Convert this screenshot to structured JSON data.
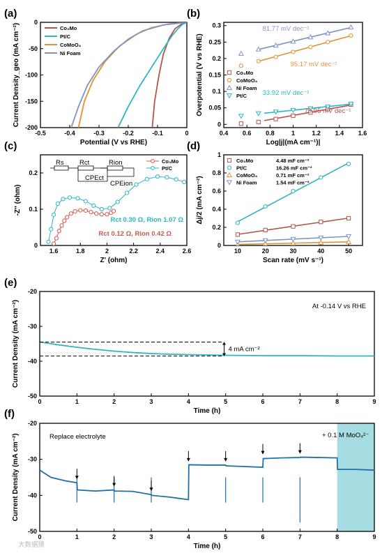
{
  "watermark": "大数据猿",
  "chart_data": [
    {
      "panel": "(a)",
      "type": "line",
      "xlabel": "Potential (V vs RHE)",
      "ylabel": "Current Density_geo (mA cm⁻²)",
      "xlim": [
        -0.5,
        0.0
      ],
      "ylim": [
        -200,
        0
      ],
      "xticks": [
        -0.5,
        -0.4,
        -0.3,
        -0.2,
        -0.1,
        0.0
      ],
      "yticks": [
        0,
        -50,
        -100,
        -150,
        -200
      ],
      "legend_position": "top-left",
      "series": [
        {
          "name": "Co₃Mo",
          "color": "#b5534a",
          "x": [
            -0.118,
            -0.11,
            -0.095,
            -0.08,
            -0.06,
            -0.04,
            -0.02,
            -0.01,
            0.0
          ],
          "y": [
            -200,
            -150,
            -100,
            -60,
            -30,
            -12,
            -4,
            -1,
            0
          ]
        },
        {
          "name": "Pt/C",
          "color": "#2bb6c4",
          "x": [
            -0.235,
            -0.2,
            -0.16,
            -0.12,
            -0.08,
            -0.05,
            -0.03,
            -0.015,
            0.0
          ],
          "y": [
            -200,
            -160,
            -120,
            -85,
            -50,
            -25,
            -12,
            -4,
            0
          ]
        },
        {
          "name": "CoMoO₄",
          "color": "#e3912f",
          "x": [
            -0.37,
            -0.35,
            -0.32,
            -0.28,
            -0.23,
            -0.17,
            -0.12,
            -0.06,
            0.0
          ],
          "y": [
            -200,
            -150,
            -110,
            -75,
            -45,
            -22,
            -10,
            -3,
            0
          ]
        },
        {
          "name": "Ni Foam",
          "color": "#7f93c9",
          "x": [
            -0.395,
            -0.37,
            -0.34,
            -0.3,
            -0.25,
            -0.2,
            -0.15,
            -0.08,
            0.0
          ],
          "y": [
            -200,
            -160,
            -120,
            -85,
            -55,
            -32,
            -16,
            -5,
            0
          ]
        }
      ]
    },
    {
      "panel": "(b)",
      "type": "scatter",
      "xlabel": "Log|j|(mA cm⁻¹)|",
      "ylabel": "Overpotential (V vs RHE)",
      "xlim": [
        0.4,
        1.6
      ],
      "ylim": [
        -0.01,
        0.31
      ],
      "xticks": [
        0.4,
        0.6,
        0.8,
        1.0,
        1.2,
        1.4,
        1.6
      ],
      "yticks": [
        0.0,
        0.05,
        0.1,
        0.15,
        0.2,
        0.25,
        0.3
      ],
      "legend_position": "center-left",
      "series": [
        {
          "name": "Co₃Mo",
          "marker": "square",
          "color": "#b5534a",
          "x": [
            0.55,
            0.7,
            0.85,
            1.0,
            1.15,
            1.3,
            1.5
          ],
          "y": [
            0.002,
            0.007,
            0.016,
            0.026,
            0.036,
            0.046,
            0.06
          ],
          "tafel": "70.95 mV dec⁻¹"
        },
        {
          "name": "CoMoO₄",
          "marker": "circle",
          "color": "#e3912f",
          "x": [
            0.55,
            0.7,
            0.85,
            1.0,
            1.15,
            1.3,
            1.5
          ],
          "y": [
            0.178,
            0.192,
            0.205,
            0.22,
            0.235,
            0.25,
            0.27
          ],
          "tafel": "95.17 mV dec⁻¹"
        },
        {
          "name": "Ni Foam",
          "marker": "triangle-up",
          "color": "#7f93c9",
          "x": [
            0.55,
            0.7,
            0.85,
            1.0,
            1.15,
            1.3,
            1.5
          ],
          "y": [
            0.215,
            0.228,
            0.24,
            0.252,
            0.265,
            0.277,
            0.295
          ],
          "tafel": "81.77 mV dec⁻¹"
        },
        {
          "name": "Pt/C",
          "marker": "triangle-down",
          "color": "#2bb6c4",
          "x": [
            0.55,
            0.7,
            0.85,
            1.0,
            1.15,
            1.3,
            1.5
          ],
          "y": [
            0.025,
            0.033,
            0.038,
            0.043,
            0.048,
            0.053,
            0.062
          ],
          "tafel": "33.92 mV dec⁻¹"
        }
      ]
    },
    {
      "panel": "(c)",
      "type": "scatter",
      "xlabel": "Z' (ohm)",
      "ylabel": "-Z'' (ohm)",
      "xlim": [
        1.5,
        2.6
      ],
      "ylim": [
        0.0,
        0.25
      ],
      "xticks": [
        1.6,
        1.8,
        2.0,
        2.2,
        2.4,
        2.6
      ],
      "yticks": [
        0.0,
        0.1,
        0.2
      ],
      "legend_position": "top-right",
      "circuit": {
        "labels": [
          "Rs",
          "Rct",
          "Rion",
          "CPEct",
          "CPEion"
        ]
      },
      "annotations": [
        "Rct 0.30 Ω, Rion 1.07 Ω",
        "Rct 0.12 Ω, Rion 0.42 Ω"
      ],
      "series": [
        {
          "name": "Co₃Mo",
          "marker": "circle",
          "color": "#d1584b",
          "x": [
            1.6,
            1.62,
            1.64,
            1.66,
            1.68,
            1.7,
            1.73,
            1.76,
            1.8,
            1.84,
            1.88,
            1.92,
            1.96,
            2.0,
            2.03,
            2.05
          ],
          "y": [
            0.005,
            0.02,
            0.04,
            0.055,
            0.068,
            0.078,
            0.088,
            0.094,
            0.097,
            0.096,
            0.092,
            0.088,
            0.086,
            0.086,
            0.09,
            0.095
          ]
        },
        {
          "name": "Pt/C",
          "marker": "circle",
          "color": "#2bb6c4",
          "x": [
            1.56,
            1.58,
            1.6,
            1.63,
            1.67,
            1.72,
            1.78,
            1.84,
            1.9,
            1.96,
            2.02,
            2.08,
            2.15,
            2.22,
            2.3,
            2.38,
            2.45,
            2.52,
            2.58
          ],
          "y": [
            0.01,
            0.045,
            0.085,
            0.115,
            0.128,
            0.132,
            0.13,
            0.122,
            0.11,
            0.1,
            0.103,
            0.12,
            0.145,
            0.168,
            0.183,
            0.19,
            0.188,
            0.182,
            0.175
          ]
        }
      ]
    },
    {
      "panel": "(d)",
      "type": "scatter",
      "xlabel": "Scan rate (mV s⁻¹)",
      "ylabel": "Δj/2 (mA cm⁻²)",
      "xlim": [
        5,
        55
      ],
      "ylim": [
        0.0,
        1.0
      ],
      "xticks": [
        10,
        20,
        30,
        40,
        50
      ],
      "yticks": [
        0.0,
        0.2,
        0.4,
        0.6,
        0.8,
        1.0
      ],
      "legend_position": "top-left",
      "series": [
        {
          "name": "Co₃Mo",
          "marker": "square",
          "color": "#b5534a",
          "capacitance": "4.48 mF cm⁻²",
          "x": [
            10,
            20,
            30,
            40,
            50
          ],
          "y": [
            0.12,
            0.17,
            0.21,
            0.26,
            0.3
          ]
        },
        {
          "name": "Pt/C",
          "marker": "circle",
          "color": "#2bb6c4",
          "capacitance": "16.26 mF cm⁻²",
          "x": [
            10,
            20,
            30,
            40,
            50
          ],
          "y": [
            0.25,
            0.43,
            0.6,
            0.75,
            0.9
          ]
        },
        {
          "name": "CoMoO₄",
          "marker": "triangle-up",
          "color": "#e3912f",
          "capacitance": "0.71 mF cm⁻²",
          "x": [
            10,
            20,
            30,
            40,
            50
          ],
          "y": [
            0.01,
            0.02,
            0.025,
            0.032,
            0.04
          ]
        },
        {
          "name": "Ni Foam",
          "marker": "triangle-down",
          "color": "#7f93c9",
          "capacitance": "1.54 mF cm⁻²",
          "x": [
            10,
            20,
            30,
            40,
            50
          ],
          "y": [
            0.04,
            0.055,
            0.07,
            0.085,
            0.1
          ]
        }
      ]
    },
    {
      "panel": "(e)",
      "type": "line",
      "xlabel": "Time (h)",
      "ylabel": "Current Density (mA cm⁻²)",
      "xlim": [
        0,
        9
      ],
      "ylim": [
        -50,
        -20
      ],
      "xticks": [
        0,
        1,
        2,
        3,
        4,
        5,
        6,
        7,
        8,
        9
      ],
      "yticks": [
        -20,
        -30,
        -40,
        -50
      ],
      "annotations": [
        "At -0.14 V vs RHE",
        "4 mA cm⁻²"
      ],
      "series": [
        {
          "name": "",
          "color": "#2bb6c4",
          "x": [
            0,
            0.2,
            0.5,
            1,
            1.5,
            2,
            2.5,
            3,
            3.5,
            4,
            4.5,
            5,
            6,
            7,
            8,
            9
          ],
          "y": [
            -34.5,
            -34.8,
            -35.3,
            -36.0,
            -36.6,
            -37.1,
            -37.5,
            -37.8,
            -38.0,
            -38.1,
            -38.2,
            -38.3,
            -38.4,
            -38.4,
            -38.5,
            -38.5
          ]
        }
      ]
    },
    {
      "panel": "(f)",
      "type": "line",
      "xlabel": "Time (h)",
      "ylabel": "Current Density (mA cm⁻²)",
      "xlim": [
        0,
        9
      ],
      "ylim": [
        -50,
        -20
      ],
      "xticks": [
        0,
        1,
        2,
        3,
        4,
        5,
        6,
        7,
        8,
        9
      ],
      "yticks": [
        -20,
        -30,
        -40,
        -50
      ],
      "annotations": [
        "Replace electrolyte",
        "+ 0.1 M MoO₄²⁻"
      ],
      "arrows_at_h": [
        1,
        2,
        3,
        4,
        5,
        6,
        7
      ],
      "shaded_region_h": [
        8,
        9
      ],
      "series": [
        {
          "name": "",
          "color": "#1f6fa8",
          "x": [
            0,
            0.3,
            0.7,
            1,
            1.01,
            1.5,
            2,
            2.01,
            2.5,
            3,
            3.01,
            3.5,
            4,
            4.01,
            4.5,
            5,
            5.01,
            5.5,
            6,
            6.01,
            6.5,
            7,
            7.01,
            7.5,
            8,
            8.01,
            8.5,
            9
          ],
          "y": [
            -33,
            -35,
            -36,
            -36.5,
            -38.5,
            -38.8,
            -38.5,
            -38.8,
            -38.9,
            -39.8,
            -40.0,
            -40.5,
            -41.2,
            -31.5,
            -31.6,
            -31.6,
            -31.8,
            -32.0,
            -32.2,
            -29.8,
            -29.6,
            -29.5,
            -29.4,
            -29.5,
            -29.6,
            -32.8,
            -32.8,
            -33.0
          ]
        }
      ]
    }
  ]
}
